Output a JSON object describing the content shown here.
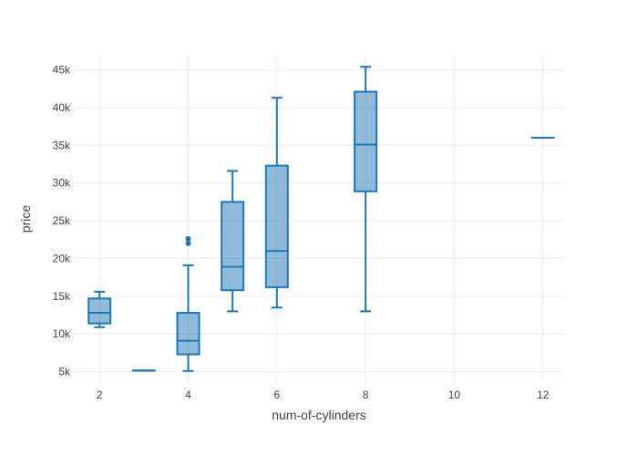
{
  "chart_data": {
    "type": "box",
    "xlabel": "num-of-cylinders",
    "ylabel": "price",
    "xlim": [
      1.4,
      12.5
    ],
    "ylim": [
      3500,
      47000
    ],
    "x_ticks": [
      {
        "value": 2,
        "label": "2"
      },
      {
        "value": 4,
        "label": "4"
      },
      {
        "value": 6,
        "label": "6"
      },
      {
        "value": 8,
        "label": "8"
      },
      {
        "value": 10,
        "label": "10"
      },
      {
        "value": 12,
        "label": "12"
      }
    ],
    "y_ticks": [
      {
        "value": 5000,
        "label": "5k"
      },
      {
        "value": 10000,
        "label": "10k"
      },
      {
        "value": 15000,
        "label": "15k"
      },
      {
        "value": 20000,
        "label": "20k"
      },
      {
        "value": 25000,
        "label": "25k"
      },
      {
        "value": 30000,
        "label": "30k"
      },
      {
        "value": 35000,
        "label": "35k"
      },
      {
        "value": 40000,
        "label": "40k"
      },
      {
        "value": 45000,
        "label": "45k"
      }
    ],
    "grid": true,
    "legend": false,
    "color": "#1f77b4",
    "fill_color": "rgba(31,119,180,0.5)",
    "boxes": [
      {
        "x": 2,
        "min": 10900,
        "q1": 11400,
        "median": 12800,
        "q3": 14700,
        "max": 15600,
        "outliers": []
      },
      {
        "x": 3,
        "min": 5150,
        "q1": 5150,
        "median": 5150,
        "q3": 5150,
        "max": 5150,
        "outliers": []
      },
      {
        "x": 4,
        "min": 5100,
        "q1": 7300,
        "median": 9100,
        "q3": 12800,
        "max": 19100,
        "outliers": [
          22000,
          22600
        ]
      },
      {
        "x": 5,
        "min": 13000,
        "q1": 15800,
        "median": 18900,
        "q3": 27500,
        "max": 31600,
        "outliers": []
      },
      {
        "x": 6,
        "min": 13500,
        "q1": 16200,
        "median": 21000,
        "q3": 32300,
        "max": 41300,
        "outliers": []
      },
      {
        "x": 8,
        "min": 13000,
        "q1": 28900,
        "median": 35100,
        "q3": 42100,
        "max": 45400,
        "outliers": []
      },
      {
        "x": 12,
        "min": 36000,
        "q1": 36000,
        "median": 36000,
        "q3": 36000,
        "max": 36000,
        "outliers": []
      }
    ]
  }
}
